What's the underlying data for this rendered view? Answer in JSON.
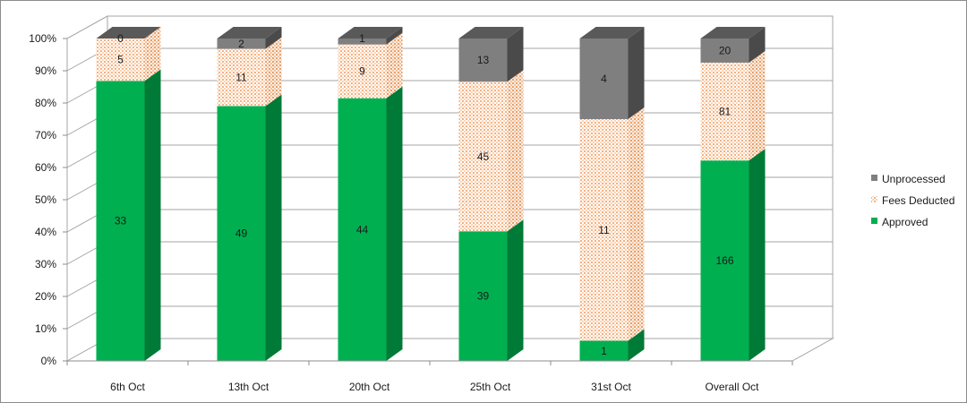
{
  "chart_data": {
    "type": "bar",
    "stacked": "percent",
    "view": "3d",
    "categories": [
      "6th Oct",
      "13th Oct",
      "20th Oct",
      "25th Oct",
      "31st Oct",
      "Overall Oct"
    ],
    "series": [
      {
        "name": "Approved",
        "values": [
          33,
          49,
          44,
          39,
          1,
          166
        ],
        "color": "#00B050"
      },
      {
        "name": "Fees Deducted",
        "values": [
          5,
          11,
          9,
          45,
          11,
          81
        ],
        "color": "#FBD5B5",
        "pattern": "dotted"
      },
      {
        "name": "Unprocessed",
        "values": [
          0,
          2,
          1,
          13,
          4,
          20
        ],
        "color": "#7F7F7F"
      }
    ],
    "y_ticks": [
      "0%",
      "10%",
      "20%",
      "30%",
      "40%",
      "50%",
      "60%",
      "70%",
      "80%",
      "90%",
      "100%"
    ],
    "ylim": [
      0,
      100
    ],
    "grid": true,
    "legend_position": "right",
    "legend_order": [
      "Unprocessed",
      "Fees Deducted",
      "Approved"
    ],
    "data_labels": true
  }
}
